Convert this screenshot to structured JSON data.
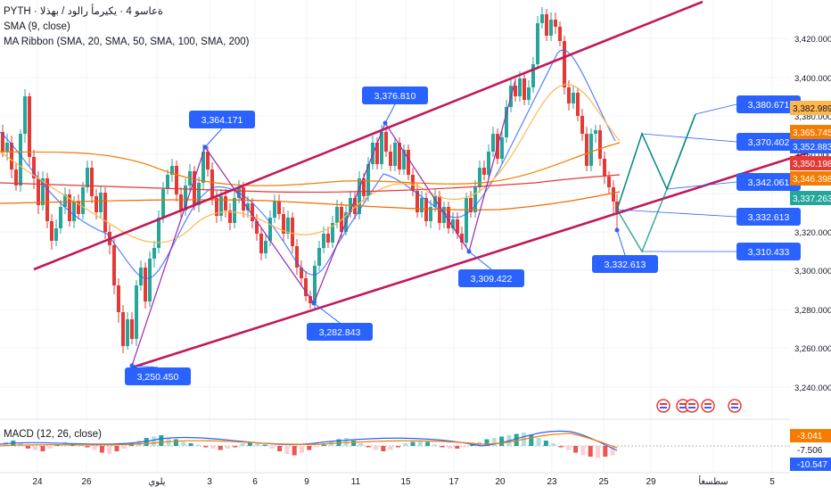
{
  "header": {
    "symbol_line": "PYTH · ةعاسو 4 · يكيرمأ رالود / بهذلا",
    "sma_line": "SMA (9, close)",
    "ribbon_line": "MA Ribbon (SMA, 20, SMA, 50, SMA, 100, SMA, 200)"
  },
  "macd": {
    "label": "MACD (12, 26, close)",
    "values": [
      "-3.041",
      "-7.506",
      "-10.547"
    ],
    "colors": [
      "#f57c00",
      "#ffffff",
      "#2962ff"
    ]
  },
  "price_scale": [
    "3,420.000",
    "3,400.000",
    "3,380.000",
    "3,360.000",
    "3,340.000",
    "3,320.000",
    "3,300.000",
    "3,280.000",
    "3,260.000",
    "3,240.000"
  ],
  "price_tags": [
    {
      "value": "3,382.989",
      "color": "#ffb74d",
      "text_color": "#131722"
    },
    {
      "value": "3,365.745",
      "color": "#f57c00",
      "text_color": "#ffffff"
    },
    {
      "value": "3,352.883",
      "color": "#2962ff",
      "text_color": "#ffffff"
    },
    {
      "value": "3,350.198",
      "color": "#e53935",
      "text_color": "#ffffff"
    },
    {
      "value": "3,346.398",
      "color": "#f57c00",
      "text_color": "#ffffff"
    },
    {
      "value": "3,337.263",
      "color": "#26a69a",
      "text_color": "#ffffff"
    }
  ],
  "callouts": [
    {
      "value": "3,364.171"
    },
    {
      "value": "3,376.810"
    },
    {
      "value": "3,282.843"
    },
    {
      "value": "3,250.450"
    },
    {
      "value": "3,309.422"
    },
    {
      "value": "3,332.613"
    },
    {
      "value": "3,380.671"
    },
    {
      "value": "3,370.402"
    },
    {
      "value": "3,342.061"
    },
    {
      "value": "3,332.613"
    },
    {
      "value": "3,310.433"
    }
  ],
  "time_axis": [
    "24",
    "26",
    "يلوي",
    "3",
    "6",
    "9",
    "11",
    "15",
    "17",
    "20",
    "23",
    "25",
    "29",
    "سطسغأ",
    "5"
  ],
  "colors": {
    "up": "#26a69a",
    "down": "#e53935",
    "channel": "#c2185b",
    "path": "#9c27b0",
    "projection": "#00897b",
    "callout": "#2962ff"
  }
}
